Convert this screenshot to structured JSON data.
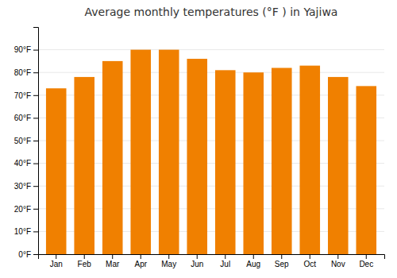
{
  "chart_data": {
    "type": "bar",
    "title": "Average monthly temperatures (°F ) in Yajiwa",
    "categories": [
      "Jan",
      "Feb",
      "Mar",
      "Apr",
      "May",
      "Jun",
      "Jul",
      "Aug",
      "Sep",
      "Oct",
      "Nov",
      "Dec"
    ],
    "values": [
      73,
      78,
      85,
      90,
      90,
      86,
      81,
      80,
      82,
      83,
      78,
      74
    ],
    "color": "#F08000",
    "ylim": [
      0,
      100
    ],
    "yticks": [
      {
        "value": 0,
        "label": "0°F"
      },
      {
        "value": 10,
        "label": "10°F"
      },
      {
        "value": 20,
        "label": "20°F"
      },
      {
        "value": 30,
        "label": "30°F"
      },
      {
        "value": 40,
        "label": "40°F"
      },
      {
        "value": 50,
        "label": "50°F"
      },
      {
        "value": 60,
        "label": "60°F"
      },
      {
        "value": 70,
        "label": "70°F"
      },
      {
        "value": 80,
        "label": "80°F"
      },
      {
        "value": 90,
        "label": "90°F"
      }
    ],
    "grid": true
  }
}
